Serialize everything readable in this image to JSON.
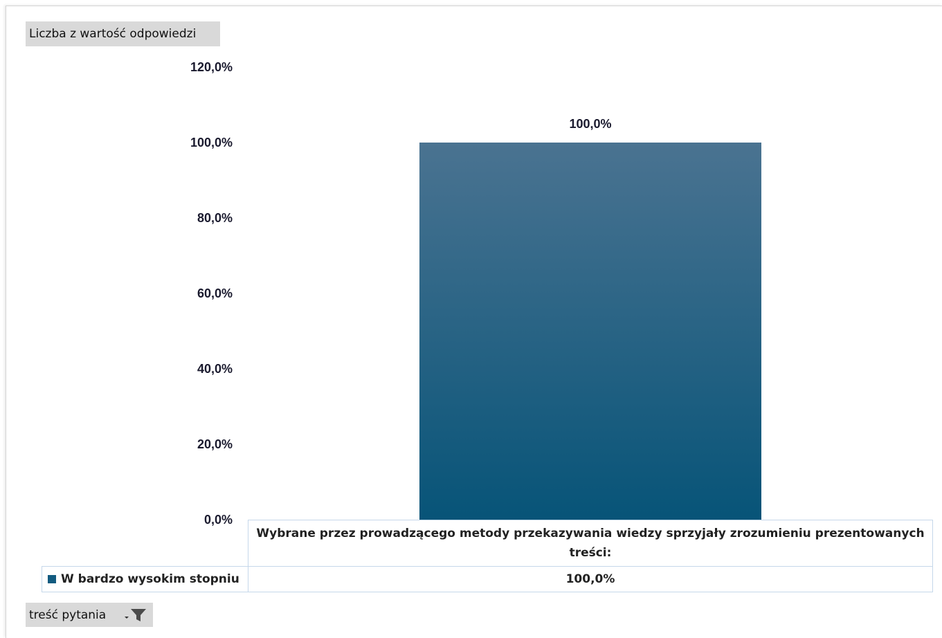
{
  "pivot": {
    "value_field_label": "Liczba z wartość odpowiedzi",
    "category_field_label": "treść pytania",
    "filter_icon": "filter-dropdown-icon"
  },
  "chart_data": {
    "type": "bar",
    "categories": [
      "Wybrane przez prowadzącego metody przekazywania wiedzy sprzyjały zrozumieniu prezentowanych treści:"
    ],
    "series": [
      {
        "name": "W bardzo wysokim stopniu",
        "values": [
          100.0
        ],
        "labels": [
          "100,0%"
        ],
        "color": "#125b80"
      }
    ],
    "y_ticks": [
      "0,0%",
      "20,0%",
      "40,0%",
      "60,0%",
      "80,0%",
      "100,0%",
      "120,0%"
    ],
    "ylim": [
      0,
      120
    ],
    "grid": false,
    "legend": "data-table",
    "title": "",
    "xlabel": "",
    "ylabel": ""
  },
  "colors": {
    "bar_top": "#4a7391",
    "bar_bottom": "#075478",
    "table_border": "#c5d7ea",
    "field_button": "#d9d9d9"
  }
}
